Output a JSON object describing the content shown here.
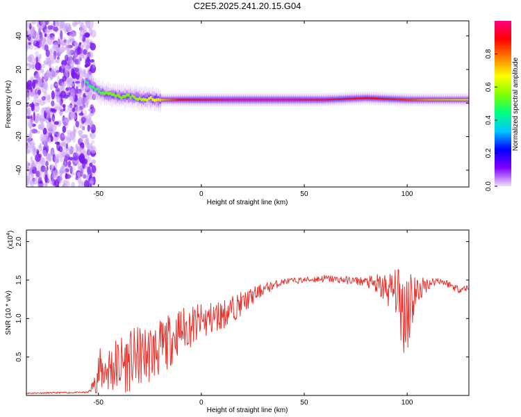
{
  "title": "C2E5.2025.241.20.15.G04",
  "chart_data": [
    {
      "type": "heatmap",
      "xlabel": "Height of straight line (km)",
      "ylabel": "Frequency (Hz)",
      "xlim": [
        -85,
        130
      ],
      "ylim": [
        -50,
        49
      ],
      "xticks": [
        -50,
        0,
        50,
        100
      ],
      "yticks": [
        -40,
        -20,
        0,
        20,
        40
      ],
      "colorbar": {
        "label": "Normalized spectral amplitude",
        "range": [
          0,
          1
        ],
        "ticks": [
          "0.0",
          "0.2",
          "0.4",
          "0.6",
          "0.8"
        ],
        "tick_values": [
          0,
          0.2,
          0.4,
          0.6,
          0.8
        ],
        "colors": [
          "#f0e0ff",
          "#8000ff",
          "#0000ff",
          "#00c8ff",
          "#00ff80",
          "#80ff00",
          "#ffff00",
          "#ff8000",
          "#ff0000",
          "#ff0080"
        ]
      },
      "ridge": {
        "x": [
          -55,
          -50,
          -45,
          -40,
          -35,
          -30,
          -25,
          -20,
          -10,
          0,
          20,
          40,
          60,
          80,
          100,
          110,
          130
        ],
        "frequency": [
          12,
          7,
          5,
          4,
          4,
          3,
          2.5,
          2,
          2,
          2,
          2,
          2,
          2,
          3,
          2,
          2,
          2
        ],
        "amplitude": [
          0.45,
          0.5,
          0.55,
          0.55,
          0.55,
          0.6,
          0.65,
          0.7,
          0.9,
          0.95,
          1.0,
          1.0,
          0.95,
          0.9,
          0.85,
          0.75,
          0.7
        ]
      },
      "noise_region_x": [
        -85,
        -55
      ]
    },
    {
      "type": "line",
      "xlabel": "Height of straight line (km)",
      "ylabel": "SNR (10 * v/v)",
      "multiplier": "(x10",
      "multiplier_exp": "4",
      "multiplier_close": ")",
      "xlim": [
        -85,
        130
      ],
      "ylim": [
        0,
        2.15
      ],
      "xticks": [
        -50,
        0,
        50,
        100
      ],
      "yticks": [
        0.5,
        1.0,
        1.5,
        2.0
      ],
      "ytick_labels": [
        "0.5",
        "1.0",
        "1.5",
        "2.0"
      ],
      "color": "#e8322c",
      "envelope": {
        "x": [
          -85,
          -55,
          -52,
          -50,
          -45,
          -40,
          -30,
          -20,
          -10,
          0,
          10,
          20,
          30,
          40,
          50,
          60,
          70,
          80,
          88,
          95,
          98,
          100,
          102,
          105,
          110,
          115,
          120,
          125,
          130
        ],
        "mean": [
          0.03,
          0.04,
          0.15,
          0.3,
          0.35,
          0.4,
          0.5,
          0.6,
          0.85,
          0.95,
          1.05,
          1.2,
          1.38,
          1.48,
          1.5,
          1.52,
          1.5,
          1.48,
          1.4,
          1.35,
          1.1,
          1.2,
          1.25,
          1.35,
          1.45,
          1.5,
          1.45,
          1.38,
          1.4
        ],
        "amplitude": [
          0.01,
          0.01,
          0.1,
          0.3,
          0.35,
          0.4,
          0.4,
          0.38,
          0.3,
          0.25,
          0.2,
          0.15,
          0.08,
          0.04,
          0.04,
          0.05,
          0.05,
          0.06,
          0.2,
          0.3,
          0.6,
          0.8,
          0.5,
          0.2,
          0.08,
          0.05,
          0.05,
          0.05,
          0.04
        ]
      }
    }
  ]
}
